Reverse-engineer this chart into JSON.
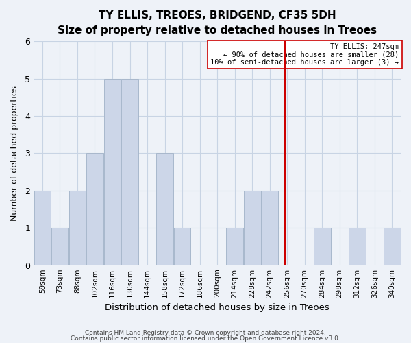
{
  "title": "TY ELLIS, TREOES, BRIDGEND, CF35 5DH",
  "subtitle": "Size of property relative to detached houses in Treoes",
  "xlabel": "Distribution of detached houses by size in Treoes",
  "ylabel": "Number of detached properties",
  "bin_labels": [
    "59sqm",
    "73sqm",
    "88sqm",
    "102sqm",
    "116sqm",
    "130sqm",
    "144sqm",
    "158sqm",
    "172sqm",
    "186sqm",
    "200sqm",
    "214sqm",
    "228sqm",
    "242sqm",
    "256sqm",
    "270sqm",
    "284sqm",
    "298sqm",
    "312sqm",
    "326sqm",
    "340sqm"
  ],
  "bar_heights": [
    2,
    1,
    2,
    3,
    5,
    5,
    0,
    3,
    1,
    0,
    0,
    1,
    2,
    2,
    0,
    0,
    1,
    0,
    1,
    0,
    1
  ],
  "bar_color": "#ccd6e8",
  "bar_edge_color": "#a8b8cc",
  "vline_color": "#cc0000",
  "ylim": [
    0,
    6
  ],
  "yticks": [
    0,
    1,
    2,
    3,
    4,
    5,
    6
  ],
  "annotation_title": "TY ELLIS: 247sqm",
  "annotation_line1": "← 90% of detached houses are smaller (28)",
  "annotation_line2": "10% of semi-detached houses are larger (3) →",
  "footer_line1": "Contains HM Land Registry data © Crown copyright and database right 2024.",
  "footer_line2": "Contains public sector information licensed under the Open Government Licence v3.0.",
  "background_color": "#eef2f8",
  "grid_color": "#c8d4e4",
  "title_fontsize": 11,
  "subtitle_fontsize": 9
}
